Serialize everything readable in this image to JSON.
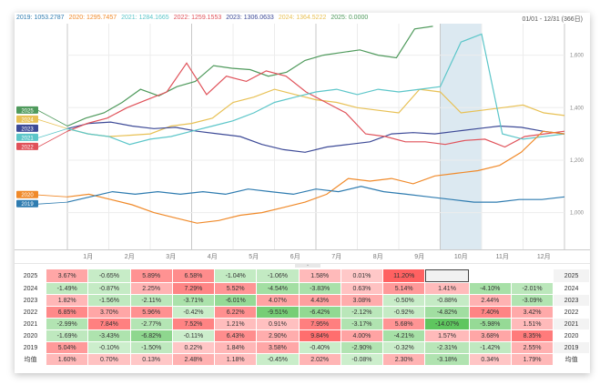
{
  "legend": [
    {
      "label": "2019: 1053.2787",
      "color": "#2f7cb0"
    },
    {
      "label": "2020: 1295.7457",
      "color": "#f08a2a"
    },
    {
      "label": "2021: 1284.1665",
      "color": "#5cc6c9"
    },
    {
      "label": "2022: 1259.1553",
      "color": "#e0525a"
    },
    {
      "label": "2023: 1306.0633",
      "color": "#3d4a97"
    },
    {
      "label": "2024: 1364.5222",
      "color": "#e8c155"
    },
    {
      "label": "2025: 0.0000",
      "color": "#4f9a5c"
    }
  ],
  "date_range": "01/01 - 12/31 (366日)",
  "chart_data": {
    "type": "line",
    "title": "",
    "xlabel": "",
    "ylabel": "",
    "x_ticks": [
      "1月",
      "2月",
      "3月",
      "4月",
      "5月",
      "6月",
      "7月",
      "8月",
      "9月",
      "10月",
      "11月",
      "12月"
    ],
    "y_ticks": [
      "1,000",
      "1,200",
      "1,400",
      "1,600"
    ],
    "ylim": [
      860,
      1720
    ],
    "highlight_month": "10月",
    "grid": true,
    "series": [
      {
        "name": "2025",
        "color": "#4f9a5c",
        "values": [
          1330,
          1360,
          1380,
          1420,
          1470,
          1445,
          1480,
          1500,
          1560,
          1550,
          1545,
          1520,
          1535,
          1580,
          1600,
          1610,
          1620,
          1600,
          1590,
          1700,
          1710
        ]
      },
      {
        "name": "2024",
        "color": "#e8c155",
        "values": [
          1320,
          1300,
          1290,
          1295,
          1300,
          1330,
          1340,
          1360,
          1420,
          1440,
          1470,
          1450,
          1430,
          1420,
          1400,
          1390,
          1380,
          1470,
          1460,
          1380,
          1390,
          1400,
          1410,
          1380,
          1370
        ]
      },
      {
        "name": "2023",
        "color": "#3d4a97",
        "values": [
          1320,
          1340,
          1345,
          1330,
          1320,
          1325,
          1310,
          1300,
          1290,
          1260,
          1240,
          1230,
          1250,
          1260,
          1270,
          1300,
          1305,
          1300,
          1310,
          1320,
          1330,
          1325,
          1310,
          1300
        ]
      },
      {
        "name": "2022",
        "color": "#e0525a",
        "values": [
          1310,
          1340,
          1360,
          1400,
          1430,
          1460,
          1570,
          1450,
          1520,
          1500,
          1540,
          1520,
          1460,
          1420,
          1380,
          1300,
          1290,
          1270,
          1270,
          1260,
          1275,
          1280,
          1250,
          1290,
          1300,
          1310
        ]
      },
      {
        "name": "2021",
        "color": "#5cc6c9",
        "values": [
          1320,
          1300,
          1290,
          1260,
          1280,
          1290,
          1310,
          1330,
          1350,
          1380,
          1420,
          1440,
          1460,
          1470,
          1450,
          1470,
          1460,
          1470,
          1480,
          1650,
          1680,
          1300,
          1280,
          1290,
          1300
        ]
      },
      {
        "name": "2020",
        "color": "#f08a2a",
        "values": [
          1060,
          1070,
          1050,
          1030,
          1000,
          980,
          960,
          970,
          990,
          1000,
          1020,
          1040,
          1070,
          1130,
          1120,
          1130,
          1110,
          1140,
          1150,
          1160,
          1180,
          1230,
          1310,
          1300
        ]
      },
      {
        "name": "2019",
        "color": "#2f7cb0",
        "values": [
          1040,
          1060,
          1080,
          1070,
          1080,
          1070,
          1080,
          1070,
          1090,
          1080,
          1070,
          1090,
          1080,
          1100,
          1080,
          1070,
          1060,
          1050,
          1040,
          1040,
          1050,
          1050,
          1060
        ]
      }
    ]
  },
  "table": {
    "avg_label": "均值",
    "rows": [
      {
        "year": "2025",
        "values": [
          "3.67%",
          "-0.65%",
          "5.89%",
          "6.58%",
          "-1.04%",
          "-1.06%",
          "1.58%",
          "0.01%",
          "11.20%",
          "",
          "",
          ""
        ]
      },
      {
        "year": "2024",
        "values": [
          "-1.49%",
          "-0.87%",
          "2.25%",
          "7.29%",
          "5.52%",
          "-4.54%",
          "-3.83%",
          "0.63%",
          "5.14%",
          "1.41%",
          "-4.10%",
          "-2.01%"
        ]
      },
      {
        "year": "2023",
        "values": [
          "1.82%",
          "-1.56%",
          "-2.11%",
          "-3.71%",
          "-6.01%",
          "4.07%",
          "4.43%",
          "3.08%",
          "-0.50%",
          "-0.88%",
          "2.44%",
          "-3.09%"
        ]
      },
      {
        "year": "2022",
        "values": [
          "6.85%",
          "3.70%",
          "5.96%",
          "-0.42%",
          "6.22%",
          "-9.51%",
          "-6.42%",
          "-2.12%",
          "-0.92%",
          "-4.82%",
          "7.40%",
          "3.42%"
        ]
      },
      {
        "year": "2021",
        "values": [
          "-2.99%",
          "7.84%",
          "-2.77%",
          "7.52%",
          "1.21%",
          "0.91%",
          "7.95%",
          "-3.17%",
          "5.68%",
          "-14.07%",
          "-5.98%",
          "1.51%"
        ]
      },
      {
        "year": "2020",
        "values": [
          "-1.69%",
          "-3.43%",
          "-6.82%",
          "-0.11%",
          "6.43%",
          "2.90%",
          "9.84%",
          "4.00%",
          "-4.21%",
          "1.57%",
          "3.68%",
          "8.35%"
        ]
      },
      {
        "year": "2019",
        "values": [
          "5.04%",
          "-0.10%",
          "-1.50%",
          "0.22%",
          "1.84%",
          "3.58%",
          "-0.40%",
          "-2.90%",
          "-0.32%",
          "-2.31%",
          "-1.42%",
          "2.55%"
        ]
      },
      {
        "year": "均值",
        "values": [
          "1.60%",
          "0.70%",
          "0.13%",
          "2.48%",
          "1.18%",
          "-0.45%",
          "2.02%",
          "-0.08%",
          "2.30%",
          "-3.18%",
          "0.34%",
          "1.79%"
        ]
      }
    ]
  }
}
